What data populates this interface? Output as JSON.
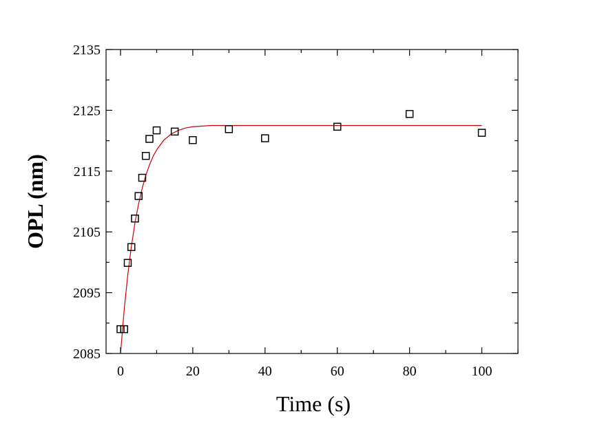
{
  "chart_data": {
    "type": "scatter",
    "title": "",
    "xlabel": "Time (s)",
    "ylabel": "OPL (nm)",
    "xlim": [
      -4,
      110
    ],
    "ylim": [
      2085,
      2135
    ],
    "x_ticks": [
      "0",
      "20",
      "40",
      "60",
      "80",
      "100"
    ],
    "y_ticks": [
      "2085",
      "2095",
      "2105",
      "2115",
      "2125",
      "2135"
    ],
    "grid": false,
    "legend": "none",
    "series": [
      {
        "type": "scatter",
        "marker": "open-square",
        "color": "#000000",
        "x": [
          0,
          1,
          2,
          3,
          4,
          5,
          6,
          7,
          8,
          10,
          15,
          20,
          30,
          40,
          60,
          80,
          100
        ],
        "y": [
          2089.0,
          2089.0,
          2099.9,
          2102.5,
          2107.2,
          2110.9,
          2113.9,
          2117.5,
          2120.3,
          2121.7,
          2121.5,
          2120.1,
          2121.9,
          2120.4,
          2122.3,
          2124.4,
          2121.3
        ]
      },
      {
        "type": "line",
        "style": "fit",
        "color": "#cc0000",
        "x": [
          0,
          1,
          2,
          3,
          4,
          5,
          6,
          7,
          8,
          9,
          10,
          12,
          14,
          16,
          18,
          20,
          25,
          30,
          40,
          60,
          80,
          100
        ],
        "y": [
          2085.0,
          2092.1,
          2097.9,
          2102.6,
          2106.5,
          2109.6,
          2112.2,
          2114.3,
          2116.0,
          2117.4,
          2118.5,
          2120.1,
          2121.1,
          2121.7,
          2122.1,
          2122.3,
          2122.5,
          2122.5,
          2122.5,
          2122.5,
          2122.5,
          2122.5
        ]
      }
    ]
  }
}
